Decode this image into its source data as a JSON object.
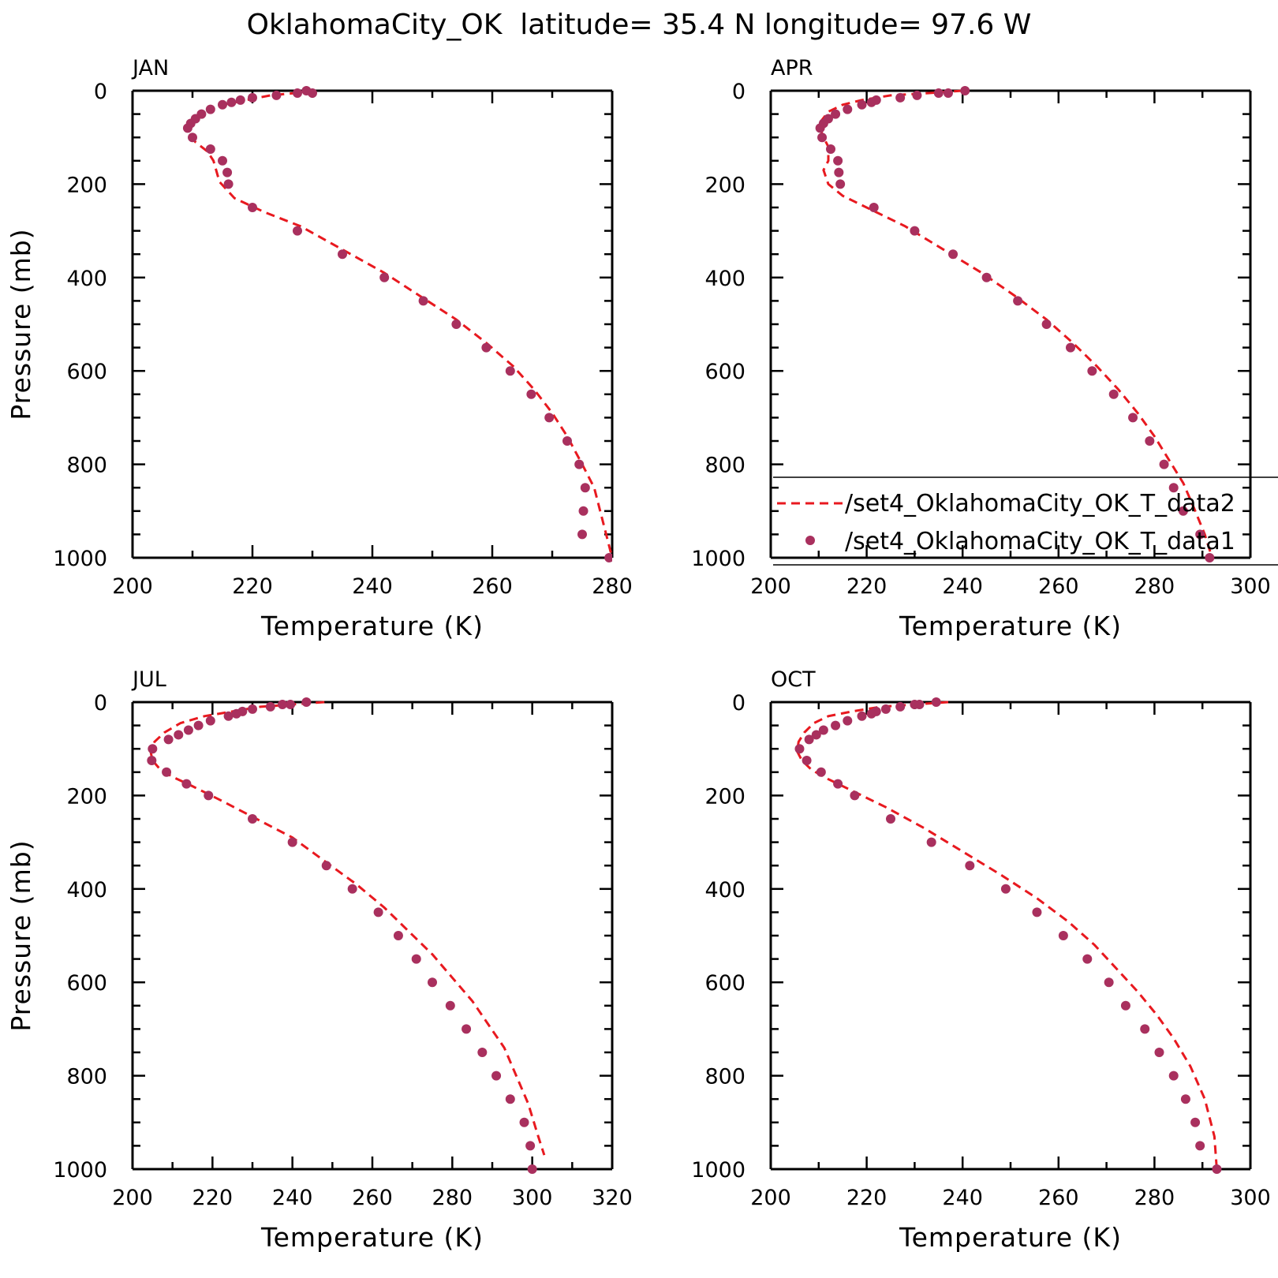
{
  "figure": {
    "title": "OklahomaCity_OK  latitude= 35.4 N longitude= 97.6 W"
  },
  "legend": {
    "entries": [
      {
        "label": "/set4_OklahomaCity_OK_T_data2",
        "style": "dashed-line",
        "color": "#e8191f"
      },
      {
        "label": "/set4_OklahomaCity_OK_T_data1",
        "style": "dot",
        "color": "#a9305e"
      }
    ]
  },
  "colors": {
    "model_line": "#e8191f",
    "obs_dots": "#a9305e",
    "axes": "#000000"
  },
  "chart_data": [
    {
      "type": "line",
      "panel": "JAN",
      "xlabel": "Temperature (K)",
      "ylabel": "Pressure (mb)",
      "xlim": [
        200,
        280
      ],
      "ylim": [
        1000,
        0
      ],
      "xticks": [
        200,
        220,
        240,
        260,
        280
      ],
      "yticks": [
        0,
        200,
        400,
        600,
        800,
        1000
      ],
      "series": [
        {
          "name": "/set4_OklahomaCity_OK_T_data2",
          "style": "dashed-line",
          "x": [
            230,
            227,
            223,
            219,
            215,
            212,
            210,
            209.3,
            209.5,
            210.5,
            212.5,
            213.5,
            214.5,
            217,
            222,
            228,
            235,
            242,
            248,
            254,
            259,
            263.5,
            267,
            270,
            272.5,
            275,
            277,
            279,
            280
          ],
          "y": [
            0,
            5,
            10,
            20,
            30,
            45,
            65,
            80,
            95,
            110,
            130,
            150,
            195,
            230,
            260,
            290,
            340,
            390,
            440,
            490,
            540,
            590,
            640,
            690,
            740,
            800,
            850,
            950,
            1000
          ]
        },
        {
          "name": "/set4_OklahomaCity_OK_T_data1",
          "style": "dot",
          "x": [
            230,
            229,
            227.5,
            224,
            220,
            218,
            216.5,
            215,
            213,
            211.5,
            210.5,
            209.7,
            209.2,
            210,
            213,
            215,
            215.8,
            216,
            220,
            227.5,
            235,
            242,
            248.5,
            254,
            259,
            263,
            266.5,
            269.5,
            272.5,
            274.5,
            275.5,
            275.2,
            275,
            279.5
          ],
          "y": [
            5,
            0,
            5,
            10,
            15,
            20,
            25,
            30,
            40,
            50,
            60,
            70,
            80,
            100,
            125,
            150,
            175,
            200,
            250,
            300,
            350,
            400,
            450,
            500,
            550,
            600,
            650,
            700,
            750,
            800,
            850,
            900,
            950,
            1000
          ]
        }
      ]
    },
    {
      "type": "line",
      "panel": "APR",
      "xlabel": "Temperature (K)",
      "ylabel": "",
      "xlim": [
        200,
        300
      ],
      "ylim": [
        1000,
        0
      ],
      "xticks": [
        200,
        220,
        240,
        260,
        280,
        300
      ],
      "yticks": [
        0,
        200,
        400,
        600,
        800,
        1000
      ],
      "series": [
        {
          "name": "/set4_OklahomaCity_OK_T_data2",
          "style": "dashed-line",
          "x": [
            240,
            233,
            225,
            219,
            215,
            212,
            210.5,
            210.3,
            211,
            212,
            212,
            211,
            212,
            215,
            221,
            228,
            236,
            244,
            251,
            257.5,
            263,
            268,
            272.5,
            276.5,
            280,
            283,
            286,
            288.5,
            290.5,
            292
          ],
          "y": [
            0,
            5,
            10,
            20,
            30,
            45,
            65,
            80,
            100,
            120,
            150,
            170,
            200,
            225,
            255,
            290,
            340,
            390,
            440,
            490,
            540,
            590,
            640,
            690,
            740,
            790,
            840,
            900,
            950,
            1000
          ]
        },
        {
          "name": "/set4_OklahomaCity_OK_T_data1",
          "style": "dot",
          "x": [
            240.5,
            237,
            235,
            230.5,
            227,
            222,
            221,
            219,
            216,
            213.5,
            212,
            211,
            210.3,
            210.7,
            212.5,
            214,
            214.2,
            214.5,
            221.5,
            230,
            238,
            245,
            251.5,
            257.5,
            262.5,
            267,
            271.5,
            275.5,
            279,
            282,
            284,
            286,
            289.5,
            291.5
          ],
          "y": [
            0,
            5,
            5,
            10,
            15,
            20,
            25,
            30,
            40,
            50,
            60,
            70,
            80,
            100,
            125,
            150,
            175,
            200,
            250,
            300,
            350,
            400,
            450,
            500,
            550,
            600,
            650,
            700,
            750,
            800,
            850,
            900,
            950,
            1000
          ]
        }
      ]
    },
    {
      "type": "line",
      "panel": "JUL",
      "xlabel": "Temperature (K)",
      "ylabel": "Pressure (mb)",
      "xlim": [
        200,
        320
      ],
      "ylim": [
        1000,
        0
      ],
      "xticks": [
        200,
        220,
        240,
        260,
        280,
        300,
        320
      ],
      "yticks": [
        0,
        200,
        400,
        600,
        800,
        1000
      ],
      "series": [
        {
          "name": "/set4_OklahomaCity_OK_T_data2",
          "style": "dashed-line",
          "x": [
            248,
            240,
            232,
            225,
            218,
            212,
            208,
            205.5,
            204.5,
            205,
            207,
            210,
            215,
            222,
            231,
            240,
            248,
            256,
            263,
            269,
            275,
            280,
            285,
            289,
            293,
            296,
            299,
            301.5,
            303
          ],
          "y": [
            0,
            5,
            10,
            20,
            30,
            45,
            65,
            85,
            105,
            125,
            145,
            160,
            180,
            210,
            250,
            290,
            340,
            390,
            440,
            490,
            540,
            590,
            640,
            690,
            740,
            800,
            860,
            930,
            970
          ]
        },
        {
          "name": "/set4_OklahomaCity_OK_T_data1",
          "style": "dot",
          "x": [
            243.5,
            239.5,
            237.5,
            234.5,
            230,
            227.5,
            226,
            224,
            219.5,
            216.5,
            214,
            211.5,
            209,
            205,
            204.8,
            208.5,
            213.5,
            219,
            230,
            240,
            248.5,
            255,
            261.5,
            266.5,
            271,
            275,
            279.5,
            283.5,
            287.5,
            291,
            294.5,
            298,
            299.5,
            300
          ],
          "y": [
            0,
            5,
            5,
            10,
            15,
            20,
            25,
            30,
            40,
            50,
            60,
            70,
            80,
            100,
            125,
            150,
            175,
            200,
            250,
            300,
            350,
            400,
            450,
            500,
            550,
            600,
            650,
            700,
            750,
            800,
            850,
            900,
            950,
            1000
          ]
        }
      ]
    },
    {
      "type": "line",
      "panel": "OCT",
      "xlabel": "Temperature (K)",
      "ylabel": "",
      "xlim": [
        200,
        300
      ],
      "ylim": [
        1000,
        0
      ],
      "xticks": [
        200,
        220,
        240,
        260,
        280,
        300
      ],
      "yticks": [
        0,
        200,
        400,
        600,
        800,
        1000
      ],
      "series": [
        {
          "name": "/set4_OklahomaCity_OK_T_data2",
          "style": "dashed-line",
          "x": [
            237,
            230,
            223,
            217,
            212,
            209,
            207,
            205.8,
            205.5,
            206.5,
            208.5,
            212,
            217,
            224,
            232,
            240,
            248,
            255.5,
            262,
            267.5,
            272,
            276.5,
            280.5,
            284,
            287.5,
            290.5,
            292.5,
            293
          ],
          "y": [
            0,
            5,
            10,
            20,
            30,
            45,
            65,
            85,
            105,
            125,
            145,
            165,
            190,
            225,
            270,
            320,
            370,
            420,
            470,
            520,
            570,
            620,
            670,
            720,
            780,
            850,
            930,
            1000
          ]
        },
        {
          "name": "/set4_OklahomaCity_OK_T_data1",
          "style": "dot",
          "x": [
            234.5,
            231,
            230,
            227,
            224,
            222,
            221,
            219,
            216,
            213.5,
            211,
            209.5,
            208,
            206,
            207.5,
            210.5,
            214,
            217.5,
            225,
            233.5,
            241.5,
            249,
            255.5,
            261,
            266,
            270.5,
            274,
            278,
            281,
            284,
            286.5,
            288.5,
            289.5,
            293
          ],
          "y": [
            0,
            5,
            5,
            10,
            15,
            20,
            25,
            30,
            40,
            50,
            60,
            70,
            80,
            100,
            125,
            150,
            175,
            200,
            250,
            300,
            350,
            400,
            450,
            500,
            550,
            600,
            650,
            700,
            750,
            800,
            850,
            900,
            950,
            1000
          ]
        }
      ]
    }
  ]
}
